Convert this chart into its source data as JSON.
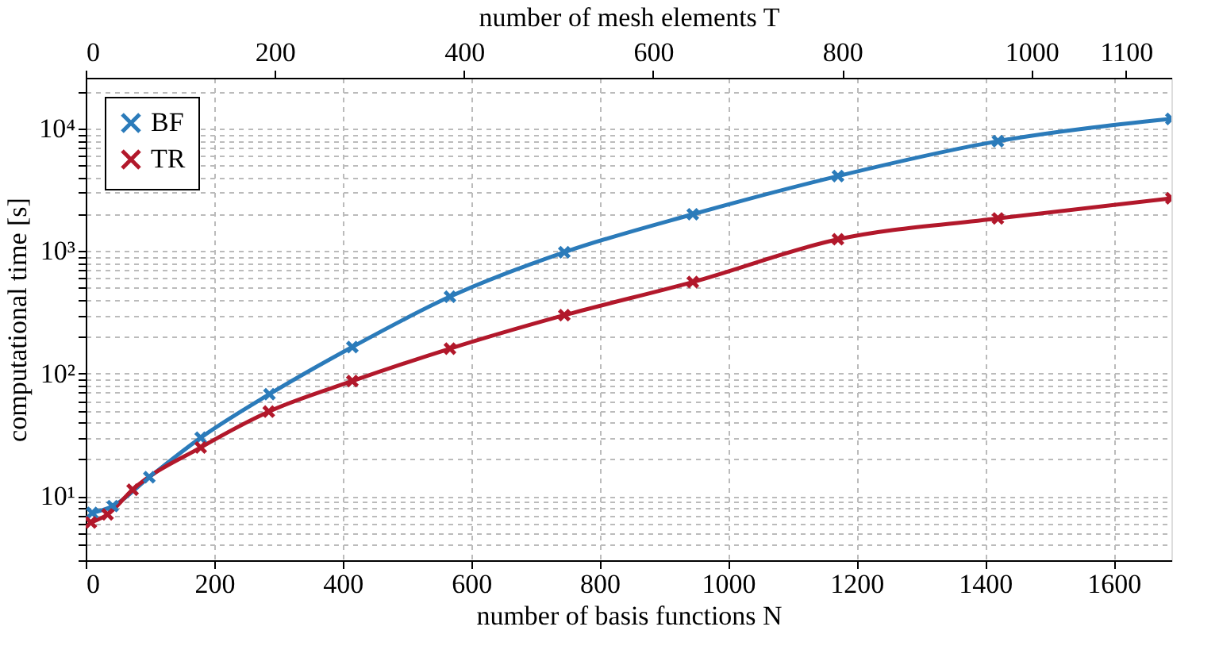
{
  "chart_data": {
    "type": "line",
    "xlabel": "number of basis functions N",
    "ylabel": "computational time [s]",
    "x2label": "number of mesh elements T",
    "log": "y",
    "grid": true,
    "legend": "top left",
    "marker": "cross",
    "line_style": "solid",
    "xlim": [
      0,
      1690
    ],
    "xticks": [
      0,
      200,
      400,
      600,
      800,
      1000,
      1200,
      1400,
      1600
    ],
    "x2lim": [
      0,
      1148
    ],
    "x2ticks": [
      0,
      200,
      400,
      600,
      800,
      1000,
      1100
    ],
    "ylim": [
      3,
      26000
    ],
    "yticks": [
      {
        "value": 3,
        "label": null
      },
      {
        "value": 4,
        "label": null
      },
      {
        "value": 5,
        "label": null
      },
      {
        "value": 6,
        "label": null
      },
      {
        "value": 7,
        "label": null
      },
      {
        "value": 8,
        "label": null
      },
      {
        "value": 9,
        "label": null
      },
      {
        "value": 10,
        "label": "10¹"
      },
      {
        "value": 20,
        "label": null
      },
      {
        "value": 30,
        "label": null
      },
      {
        "value": 40,
        "label": null
      },
      {
        "value": 50,
        "label": null
      },
      {
        "value": 60,
        "label": null
      },
      {
        "value": 70,
        "label": null
      },
      {
        "value": 80,
        "label": null
      },
      {
        "value": 90,
        "label": null
      },
      {
        "value": 100,
        "label": "10²"
      },
      {
        "value": 200,
        "label": null
      },
      {
        "value": 300,
        "label": null
      },
      {
        "value": 400,
        "label": null
      },
      {
        "value": 500,
        "label": null
      },
      {
        "value": 600,
        "label": null
      },
      {
        "value": 700,
        "label": null
      },
      {
        "value": 800,
        "label": null
      },
      {
        "value": 900,
        "label": null
      },
      {
        "value": 1000,
        "label": "10³"
      },
      {
        "value": 2000,
        "label": null
      },
      {
        "value": 3000,
        "label": null
      },
      {
        "value": 4000,
        "label": null
      },
      {
        "value": 5000,
        "label": null
      },
      {
        "value": 6000,
        "label": null
      },
      {
        "value": 7000,
        "label": null
      },
      {
        "value": 8000,
        "label": null
      },
      {
        "value": 9000,
        "label": null
      },
      {
        "value": 10000,
        "label": "10⁴"
      },
      {
        "value": 20000,
        "label": null
      }
    ],
    "series": [
      {
        "name": "BF",
        "color": "#2b7bba",
        "x": [
          10,
          42,
          99,
          179,
          286,
          415,
          567,
          745,
          945,
          1171,
          1420,
          1690
        ],
        "values": [
          7.3,
          8.3,
          14.3,
          30,
          68,
          165,
          425,
          980,
          2000,
          4100,
          7900,
          12000
        ]
      },
      {
        "name": "TR",
        "color": "#b2182b",
        "x": [
          8,
          34,
          73,
          179,
          285,
          415,
          567,
          745,
          945,
          1171,
          1420,
          1690
        ],
        "values": [
          6.1,
          7.1,
          11.3,
          25,
          49,
          87,
          160,
          300,
          560,
          1250,
          1850,
          2700
        ]
      }
    ]
  }
}
